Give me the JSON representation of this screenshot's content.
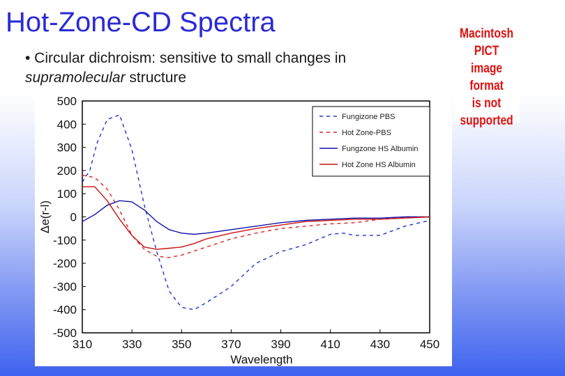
{
  "slide": {
    "title": "Hot-Zone-CD Spectra",
    "bullet": {
      "prefix": "• Circular dichroism: sensitive to small changes in ",
      "emphasis": "supramolecular",
      "suffix": " structure"
    },
    "placeholder": {
      "lines": [
        "Macintosh PICT",
        "image format",
        "is not supported"
      ],
      "color": "#e01010"
    }
  },
  "chart_data": {
    "type": "line",
    "xlabel": "Wavelength",
    "ylabel": "Δe(r-l)",
    "xlim": [
      310,
      450
    ],
    "ylim": [
      -500,
      500
    ],
    "xticks": [
      310,
      330,
      350,
      370,
      390,
      410,
      430,
      450
    ],
    "yticks": [
      500,
      400,
      300,
      200,
      100,
      0,
      -100,
      -200,
      -300,
      -400,
      -500
    ],
    "grid": false,
    "legend_position": "top-right",
    "series": [
      {
        "name": "Fungizone PBS",
        "color": "#2233cc",
        "style": "dashed",
        "points": [
          [
            310,
            150
          ],
          [
            313,
            200
          ],
          [
            316,
            320
          ],
          [
            320,
            420
          ],
          [
            325,
            440
          ],
          [
            330,
            290
          ],
          [
            335,
            50
          ],
          [
            340,
            -150
          ],
          [
            345,
            -320
          ],
          [
            350,
            -390
          ],
          [
            355,
            -400
          ],
          [
            360,
            -370
          ],
          [
            370,
            -300
          ],
          [
            380,
            -200
          ],
          [
            390,
            -150
          ],
          [
            400,
            -120
          ],
          [
            410,
            -75
          ],
          [
            415,
            -70
          ],
          [
            420,
            -80
          ],
          [
            430,
            -80
          ],
          [
            440,
            -40
          ],
          [
            450,
            -15
          ]
        ]
      },
      {
        "name": "Hot Zone-PBS",
        "color": "#dd2222",
        "style": "dashed",
        "points": [
          [
            310,
            180
          ],
          [
            315,
            170
          ],
          [
            320,
            120
          ],
          [
            325,
            30
          ],
          [
            330,
            -80
          ],
          [
            335,
            -140
          ],
          [
            340,
            -170
          ],
          [
            345,
            -175
          ],
          [
            350,
            -165
          ],
          [
            360,
            -130
          ],
          [
            370,
            -95
          ],
          [
            380,
            -70
          ],
          [
            390,
            -50
          ],
          [
            400,
            -40
          ],
          [
            410,
            -30
          ],
          [
            420,
            -25
          ],
          [
            430,
            -10
          ],
          [
            440,
            0
          ],
          [
            450,
            0
          ]
        ]
      },
      {
        "name": "Fungzone HS Albumin",
        "color": "#1111aa",
        "style": "solid",
        "points": [
          [
            310,
            -20
          ],
          [
            315,
            10
          ],
          [
            320,
            50
          ],
          [
            325,
            70
          ],
          [
            330,
            65
          ],
          [
            335,
            30
          ],
          [
            340,
            -20
          ],
          [
            345,
            -55
          ],
          [
            350,
            -70
          ],
          [
            355,
            -75
          ],
          [
            360,
            -70
          ],
          [
            370,
            -55
          ],
          [
            380,
            -40
          ],
          [
            390,
            -25
          ],
          [
            400,
            -15
          ],
          [
            410,
            -10
          ],
          [
            420,
            -5
          ],
          [
            430,
            -5
          ],
          [
            440,
            0
          ],
          [
            450,
            0
          ]
        ]
      },
      {
        "name": "Hot Zone HS Albumin",
        "color": "#cc1111",
        "style": "solid",
        "points": [
          [
            310,
            130
          ],
          [
            315,
            130
          ],
          [
            320,
            70
          ],
          [
            325,
            -10
          ],
          [
            330,
            -80
          ],
          [
            335,
            -130
          ],
          [
            340,
            -140
          ],
          [
            345,
            -135
          ],
          [
            350,
            -130
          ],
          [
            355,
            -115
          ],
          [
            360,
            -95
          ],
          [
            370,
            -70
          ],
          [
            380,
            -50
          ],
          [
            390,
            -35
          ],
          [
            400,
            -20
          ],
          [
            410,
            -15
          ],
          [
            420,
            -10
          ],
          [
            430,
            -10
          ],
          [
            440,
            -5
          ],
          [
            450,
            0
          ]
        ]
      }
    ]
  }
}
